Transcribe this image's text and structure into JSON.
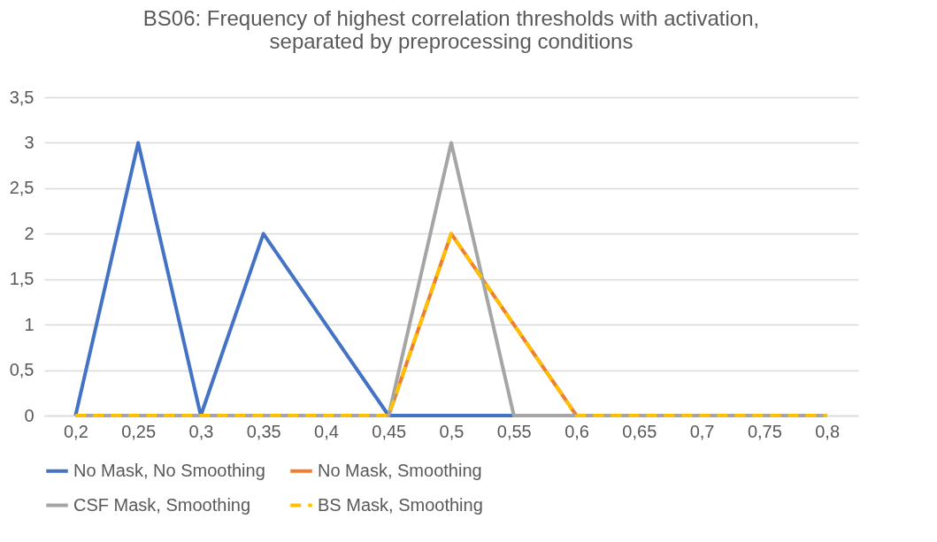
{
  "chart_data": {
    "type": "line",
    "title": "BS06: Frequency of highest correlation thresholds with activation, separated by preprocessing conditions",
    "categories": [
      "0,2",
      "0,25",
      "0,3",
      "0,35",
      "0,4",
      "0,45",
      "0,5",
      "0,55",
      "0,6",
      "0,65",
      "0,7",
      "0,75",
      "0,8"
    ],
    "series": [
      {
        "name": "No Mask, No Smoothing",
        "color": "#4472c4",
        "line_style": "solid",
        "values": [
          0,
          3,
          0,
          2,
          1,
          0,
          0,
          0,
          0,
          null,
          null,
          null,
          null
        ]
      },
      {
        "name": "No Mask, Smoothing",
        "color": "#ed7d31",
        "line_style": "solid",
        "values": [
          null,
          null,
          null,
          null,
          null,
          0,
          2,
          1,
          0,
          null,
          null,
          null,
          null
        ]
      },
      {
        "name": "CSF Mask, Smoothing",
        "color": "#a5a5a5",
        "line_style": "solid",
        "values": [
          0,
          0,
          0,
          0,
          0,
          0,
          3,
          0,
          0,
          0,
          0,
          0,
          0
        ]
      },
      {
        "name": "BS Mask, Smoothing",
        "color": "#ffc000",
        "line_style": "dashed",
        "values": [
          0,
          0,
          0,
          0,
          0,
          0,
          2,
          1,
          0,
          0,
          0,
          0,
          0
        ]
      }
    ],
    "ylim": [
      0,
      3.5
    ],
    "yticks": [
      0,
      {
        "value": 0.5,
        "label": "0,5"
      },
      1,
      {
        "value": 1.5,
        "label": "1,5"
      },
      2,
      {
        "value": 2.5,
        "label": "2,5"
      },
      3,
      {
        "value": 3.5,
        "label": "3,5"
      }
    ],
    "grid": "y",
    "legend": "bottom",
    "marker": "none"
  }
}
